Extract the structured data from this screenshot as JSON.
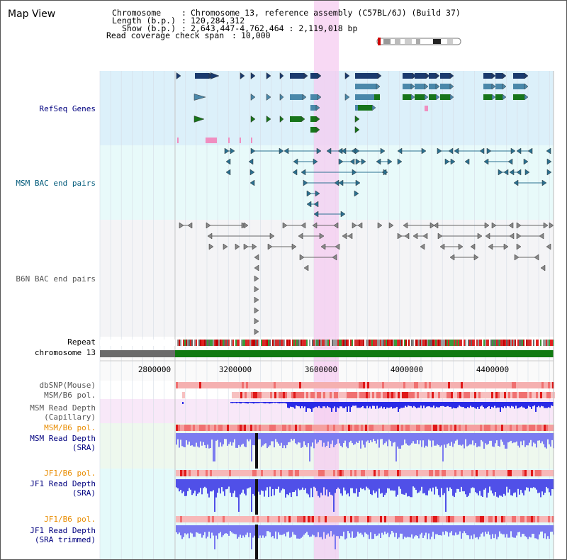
{
  "title": "Map View",
  "info": {
    "chromosome_key": "Chromosome",
    "chromosome_val": "Chromosome 13, reference assembly (C57BL/6J) (Build 37)",
    "length_key": "Length (b.p.)",
    "length_val": "120,284,312",
    "show_key": "Show (b.p.)",
    "show_val": "2,643,447-4,762,464 : 2,119,018 bp",
    "read_key": "Read coverage check span",
    "read_val": "10,000"
  },
  "tracks": {
    "refseq": "RefSeq Genes",
    "msm_bac": "MSM BAC end pairs",
    "b6n_bac": "B6N BAC end pairs",
    "repeat": "Repeat",
    "chromosome": "chromosome 13",
    "dbsnp": "dbSNP(Mouse)",
    "msm_b6_pol_1": "MSM/B6 pol.",
    "msm_rd_cap_1": "MSM Read Depth",
    "msm_rd_cap_2": "(Capillary)",
    "msm_b6_pol_2": "MSM/B6 pol.",
    "msm_rd_sra_1": "MSM Read Depth",
    "msm_rd_sra_2": "(SRA)",
    "jf1_b6_pol_1": "JF1/B6 pol.",
    "jf1_rd_sra_1": "JF1 Read Depth",
    "jf1_rd_sra_2": "(SRA)",
    "jf1_b6_pol_2": "JF1/B6 pol.",
    "jf1_rd_tr_1": "JF1 Read Depth",
    "jf1_rd_tr_2": "(SRA trimmed)"
  },
  "axis": {
    "ticks": [
      "2800000",
      "3200000",
      "3600000",
      "4000000",
      "4400000"
    ]
  },
  "colors": {
    "refseq_bg": "#dcf0fa",
    "msm_bg": "#e8fafa",
    "b6n_bg": "#f4f4f6",
    "gene_navy": "#1a3a6e",
    "gene_steel": "#4a88aa",
    "gene_green": "#17751a",
    "gene_pink": "#f08ec0",
    "msm_feature": "#2a7090",
    "b6n_feature": "#888888",
    "highlight": "#f5ccf0",
    "chrom_green": "#107a10",
    "chrom_gray": "#6b6b6b",
    "label_navy": "#00007f",
    "label_teal": "#005a7a",
    "label_orange": "#e88c00",
    "depth_blue": "#2a2ae6",
    "depth_light_blue": "#7b7bf0",
    "snp_red": "#e83030"
  }
}
